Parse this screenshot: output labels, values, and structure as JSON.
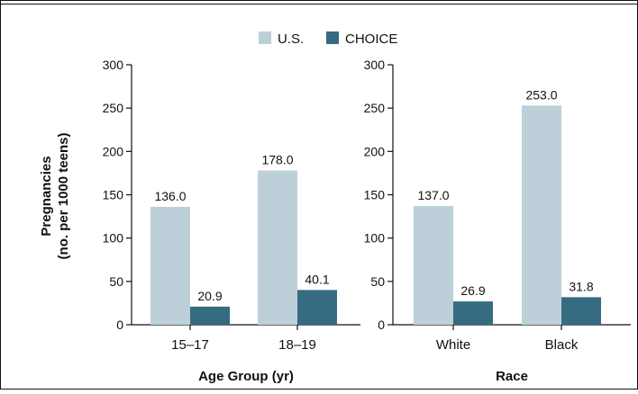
{
  "colors": {
    "us": "#bdd0da",
    "choice": "#356c82",
    "axis": "#111111"
  },
  "legend": [
    {
      "name": "U.S.",
      "color_key": "us"
    },
    {
      "name": "CHOICE",
      "color_key": "choice"
    }
  ],
  "y_axis_title_line1": "Pregnancies",
  "y_axis_title_line2": "(no. per 1000 teens)",
  "chart_data": [
    {
      "type": "bar",
      "categories": [
        "15–17",
        "18–19"
      ],
      "series": [
        {
          "name": "U.S.",
          "values": [
            136.0,
            178.0
          ]
        },
        {
          "name": "CHOICE",
          "values": [
            20.9,
            40.1
          ]
        }
      ],
      "xlabel": "Age Group (yr)",
      "ylabel": "Pregnancies (no. per 1000 teens)",
      "ylim": [
        0,
        300
      ],
      "yticks": [
        0,
        50,
        100,
        150,
        200,
        250,
        300
      ],
      "grid": false,
      "legend_position": "top-center"
    },
    {
      "type": "bar",
      "categories": [
        "White",
        "Black"
      ],
      "series": [
        {
          "name": "U.S.",
          "values": [
            137.0,
            253.0
          ]
        },
        {
          "name": "CHOICE",
          "values": [
            26.9,
            31.8
          ]
        }
      ],
      "xlabel": "Race",
      "ylabel": "",
      "ylim": [
        0,
        300
      ],
      "yticks": [
        0,
        50,
        100,
        150,
        200,
        250,
        300
      ],
      "grid": false,
      "legend_position": "top-center"
    }
  ]
}
